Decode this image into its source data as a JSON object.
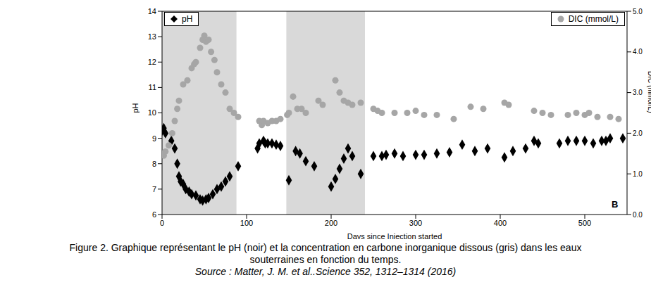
{
  "chart_data": {
    "type": "scatter",
    "x_label": "Days since Injection started",
    "y_label": "pH",
    "y2_label": "DIC (mmol/L)",
    "xlim": [
      0,
      550
    ],
    "xticks": [
      0,
      100,
      200,
      300,
      400,
      500
    ],
    "ylim": [
      6,
      14
    ],
    "yticks": [
      6,
      7,
      8,
      9,
      10,
      11,
      12,
      13,
      14
    ],
    "y2lim": [
      0,
      5
    ],
    "y2ticks": [
      {
        "value": 0,
        "label": "0.0"
      },
      {
        "value": 1,
        "label": "1.0"
      },
      {
        "value": 2,
        "label": "2.0"
      },
      {
        "value": 3,
        "label": "3.0"
      },
      {
        "value": 4,
        "label": "4.0"
      },
      {
        "value": 5,
        "label": "5.0"
      }
    ],
    "grid": false,
    "legend": "top",
    "shaded_ranges": [
      [
        0,
        88
      ],
      [
        147,
        240
      ]
    ],
    "annotations": [
      "B"
    ],
    "caption": "Figure 2. Graphique représentant le pH (noir) et la concentration en carbone inorganique dissous (gris) dans les eaux souterraines en fonction du temps.",
    "source": "Source : Matter, J. M. et al..Science 352, 1312–1314 (2016)",
    "series": [
      {
        "name": "pH",
        "color": "#000000",
        "marker": "diamond",
        "x": [
          0,
          2,
          4,
          11,
          15,
          18,
          20,
          22,
          25,
          28,
          32,
          35,
          40,
          45,
          48,
          52,
          55,
          60,
          65,
          70,
          75,
          80,
          90,
          113,
          115,
          120,
          122,
          125,
          130,
          135,
          140,
          150,
          158,
          163,
          170,
          180,
          200,
          205,
          210,
          215,
          220,
          225,
          235,
          250,
          260,
          265,
          275,
          285,
          300,
          310,
          325,
          340,
          355,
          370,
          385,
          405,
          415,
          430,
          440,
          445,
          470,
          480,
          490,
          500,
          510,
          520,
          525,
          530,
          545
        ],
        "values": [
          9.3,
          9.4,
          9.2,
          8.9,
          8.6,
          8.0,
          7.5,
          7.3,
          7.2,
          7.0,
          6.9,
          6.8,
          6.75,
          6.6,
          6.55,
          6.6,
          6.65,
          6.8,
          7.0,
          7.1,
          7.3,
          7.5,
          7.9,
          8.6,
          8.8,
          8.9,
          8.8,
          8.8,
          8.8,
          8.75,
          8.7,
          7.35,
          8.5,
          8.4,
          8.1,
          7.9,
          7.1,
          7.4,
          7.8,
          8.2,
          8.6,
          8.3,
          7.6,
          8.3,
          8.3,
          8.35,
          8.4,
          8.3,
          8.35,
          8.35,
          8.4,
          8.45,
          8.75,
          8.5,
          8.6,
          8.25,
          8.5,
          8.6,
          8.9,
          8.8,
          8.8,
          8.9,
          8.9,
          8.9,
          8.8,
          8.9,
          8.9,
          9.0,
          9.0
        ]
      },
      {
        "name": "DIC (mmol/L)",
        "color": "#a6a6a6",
        "marker": "circle",
        "axis": "y2",
        "x": [
          0,
          2,
          4,
          8,
          12,
          15,
          18,
          20,
          25,
          30,
          35,
          38,
          40,
          45,
          48,
          50,
          52,
          55,
          58,
          62,
          65,
          70,
          75,
          80,
          85,
          90,
          115,
          118,
          120,
          125,
          130,
          135,
          140,
          148,
          150,
          155,
          160,
          165,
          170,
          185,
          190,
          205,
          210,
          215,
          220,
          225,
          235,
          250,
          255,
          260,
          275,
          290,
          300,
          310,
          325,
          345,
          365,
          380,
          405,
          410,
          440,
          450,
          460,
          480,
          490,
          500,
          505,
          515,
          530,
          540
        ],
        "values": [
          1.5,
          1.45,
          1.55,
          1.7,
          2.0,
          2.3,
          2.6,
          2.8,
          3.2,
          3.3,
          3.6,
          3.7,
          3.75,
          4.1,
          4.3,
          4.4,
          4.25,
          4.3,
          4.0,
          3.8,
          3.5,
          3.2,
          3.0,
          2.6,
          2.5,
          2.4,
          2.3,
          2.2,
          2.3,
          2.25,
          2.3,
          2.3,
          2.35,
          2.45,
          2.5,
          2.9,
          2.6,
          2.6,
          2.5,
          2.8,
          2.7,
          3.3,
          3.0,
          2.8,
          2.75,
          2.7,
          2.75,
          2.6,
          2.55,
          2.5,
          2.5,
          2.5,
          2.55,
          2.45,
          2.45,
          2.35,
          2.65,
          2.6,
          2.75,
          2.7,
          2.55,
          2.5,
          2.45,
          2.45,
          2.5,
          2.45,
          2.5,
          2.4,
          2.4,
          2.35
        ]
      }
    ]
  }
}
